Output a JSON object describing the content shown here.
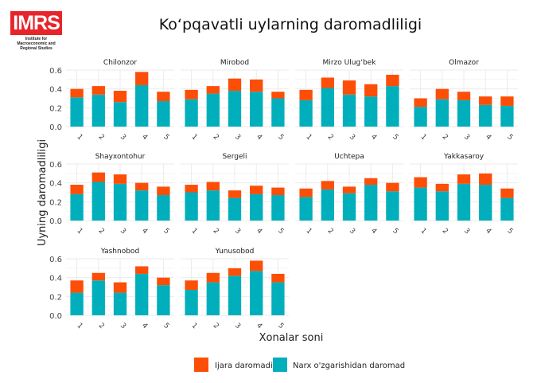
{
  "logo": {
    "text": "IMRS",
    "subtitle": "Institute for Macroeconomic and Regional Studies",
    "color": "#e8242b"
  },
  "chart_data": {
    "type": "bar",
    "stacked": true,
    "faceted": true,
    "title": "Ko‘pqavatli uylarning daromadliligi",
    "xlabel": "Xonalar soni",
    "ylabel": "Uyning daromadliligi",
    "ylim": [
      0,
      0.6
    ],
    "yticks": [
      "0.0",
      "0.2",
      "0.4",
      "0.6"
    ],
    "categories": [
      "1",
      "2",
      "3",
      "4",
      "5"
    ],
    "grid": true,
    "legend_position": "bottom",
    "legend": [
      {
        "name": "Ijara daromadi",
        "color": "#fc4e07"
      },
      {
        "name": "Narx o'zgarishidan daromad",
        "color": "#00afbb"
      }
    ],
    "facets": [
      {
        "name": "Chilonzor",
        "narx": [
          0.31,
          0.34,
          0.26,
          0.44,
          0.27
        ],
        "ijara": [
          0.09,
          0.09,
          0.12,
          0.14,
          0.1
        ]
      },
      {
        "name": "Mirobod",
        "narx": [
          0.29,
          0.35,
          0.38,
          0.37,
          0.3
        ],
        "ijara": [
          0.1,
          0.08,
          0.13,
          0.13,
          0.07
        ]
      },
      {
        "name": "Mirzo Ulug‘bek",
        "narx": [
          0.28,
          0.41,
          0.34,
          0.32,
          0.43
        ],
        "ijara": [
          0.11,
          0.11,
          0.15,
          0.13,
          0.12
        ]
      },
      {
        "name": "Olmazor",
        "narx": [
          0.21,
          0.29,
          0.28,
          0.23,
          0.22
        ],
        "ijara": [
          0.09,
          0.11,
          0.09,
          0.09,
          0.1
        ]
      },
      {
        "name": "Shayxontohur",
        "narx": [
          0.28,
          0.41,
          0.39,
          0.32,
          0.27
        ],
        "ijara": [
          0.1,
          0.1,
          0.1,
          0.08,
          0.09
        ]
      },
      {
        "name": "Sergeli",
        "narx": [
          0.3,
          0.32,
          0.24,
          0.28,
          0.27
        ],
        "ijara": [
          0.08,
          0.09,
          0.08,
          0.09,
          0.08
        ]
      },
      {
        "name": "Uchtepa",
        "narx": [
          0.25,
          0.33,
          0.29,
          0.38,
          0.31
        ],
        "ijara": [
          0.09,
          0.09,
          0.07,
          0.07,
          0.09
        ]
      },
      {
        "name": "Yakkasaroy",
        "narx": [
          0.35,
          0.31,
          0.39,
          0.38,
          0.24
        ],
        "ijara": [
          0.11,
          0.08,
          0.1,
          0.12,
          0.1
        ]
      },
      {
        "name": "Yashnobod",
        "narx": [
          0.24,
          0.37,
          0.24,
          0.44,
          0.32
        ],
        "ijara": [
          0.13,
          0.08,
          0.11,
          0.08,
          0.08
        ]
      },
      {
        "name": "Yunusobod",
        "narx": [
          0.27,
          0.35,
          0.42,
          0.47,
          0.35
        ],
        "ijara": [
          0.1,
          0.1,
          0.08,
          0.11,
          0.09
        ]
      }
    ]
  }
}
